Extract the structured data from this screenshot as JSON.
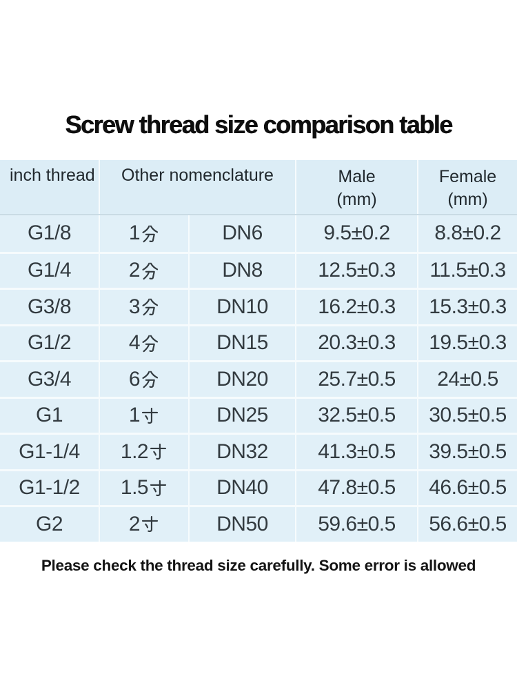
{
  "title": "Screw thread size comparison table",
  "footnote": "Please check the thread size carefully. Some error is allowed",
  "colors": {
    "table_background": "#e1f0f8",
    "header_background": "#dcedf6",
    "grid_line": "#ffffff",
    "header_rule": "#c9dbe4",
    "body_text": "#333b40",
    "title_text": "#0e0e0e"
  },
  "chart_data": {
    "type": "table",
    "title": "Screw thread size comparison table",
    "header": {
      "inch": "inch thread",
      "other": "Other nomenclature",
      "male_line1": "Male",
      "male_line2": "(mm)",
      "female_line1": "Female",
      "female_line2": "(mm)"
    },
    "layout": {
      "grid": "on",
      "columns": 5,
      "other_nomenclature_spans": [
        "chinese name column",
        "DN column"
      ]
    },
    "rows": [
      {
        "inch": "G1/8",
        "other": "1分",
        "dn": "DN6",
        "male": "9.5±0.2",
        "female": "8.8±0.2"
      },
      {
        "inch": "G1/4",
        "other": "2分",
        "dn": "DN8",
        "male": "12.5±0.3",
        "female": "11.5±0.3"
      },
      {
        "inch": "G3/8",
        "other": "3分",
        "dn": "DN10",
        "male": "16.2±0.3",
        "female": "15.3±0.3"
      },
      {
        "inch": "G1/2",
        "other": "4分",
        "dn": "DN15",
        "male": "20.3±0.3",
        "female": "19.5±0.3"
      },
      {
        "inch": "G3/4",
        "other": "6分",
        "dn": "DN20",
        "male": "25.7±0.5",
        "female": "24±0.5"
      },
      {
        "inch": "G1",
        "other": "1寸",
        "dn": "DN25",
        "male": "32.5±0.5",
        "female": "30.5±0.5"
      },
      {
        "inch": "G1-1/4",
        "other": "1.2寸",
        "dn": "DN32",
        "male": "41.3±0.5",
        "female": "39.5±0.5"
      },
      {
        "inch": "G1-1/2",
        "other": "1.5寸",
        "dn": "DN40",
        "male": "47.8±0.5",
        "female": "46.6±0.5"
      },
      {
        "inch": "G2",
        "other": "2寸",
        "dn": "DN50",
        "male": "59.6±0.5",
        "female": "56.6±0.5"
      }
    ]
  }
}
